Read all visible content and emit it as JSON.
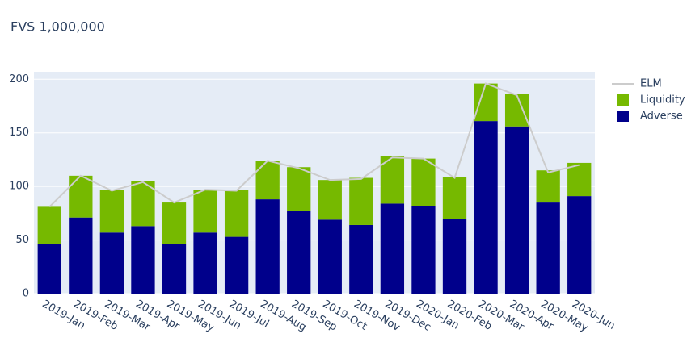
{
  "chart_data": {
    "type": "bar",
    "barmode": "stack",
    "title": "FVS 1,000,000",
    "categories": [
      "2019-Jan",
      "2019-Feb",
      "2019-Mar",
      "2019-Apr",
      "2019-May",
      "2019-Jun",
      "2019-Jul",
      "2019-Aug",
      "2019-Sep",
      "2019-Oct",
      "2019-Nov",
      "2019-Dec",
      "2020-Jan",
      "2020-Feb",
      "2020-Mar",
      "2020-Apr",
      "2020-May",
      "2020-Jun"
    ],
    "series": [
      {
        "name": "ELM",
        "type": "line",
        "color": "#cccccc",
        "values": [
          81,
          110,
          96,
          104,
          85,
          97,
          96,
          124,
          117,
          106,
          107,
          127,
          126,
          108,
          196,
          185,
          113,
          120
        ]
      },
      {
        "name": "Liquidity",
        "type": "bar",
        "color": "#76b900",
        "values": [
          35,
          39,
          40,
          42,
          39,
          40,
          44,
          36,
          41,
          37,
          44,
          44,
          44,
          39,
          35,
          30,
          30,
          31
        ]
      },
      {
        "name": "Adverse",
        "type": "bar",
        "color": "#00008b",
        "values": [
          46,
          71,
          57,
          63,
          46,
          57,
          53,
          88,
          77,
          69,
          64,
          84,
          82,
          70,
          161,
          156,
          85,
          91
        ]
      }
    ],
    "ylim": [
      0,
      207
    ],
    "yticks": [
      0,
      50,
      100,
      150,
      200
    ],
    "grid": true,
    "legend": "right"
  }
}
